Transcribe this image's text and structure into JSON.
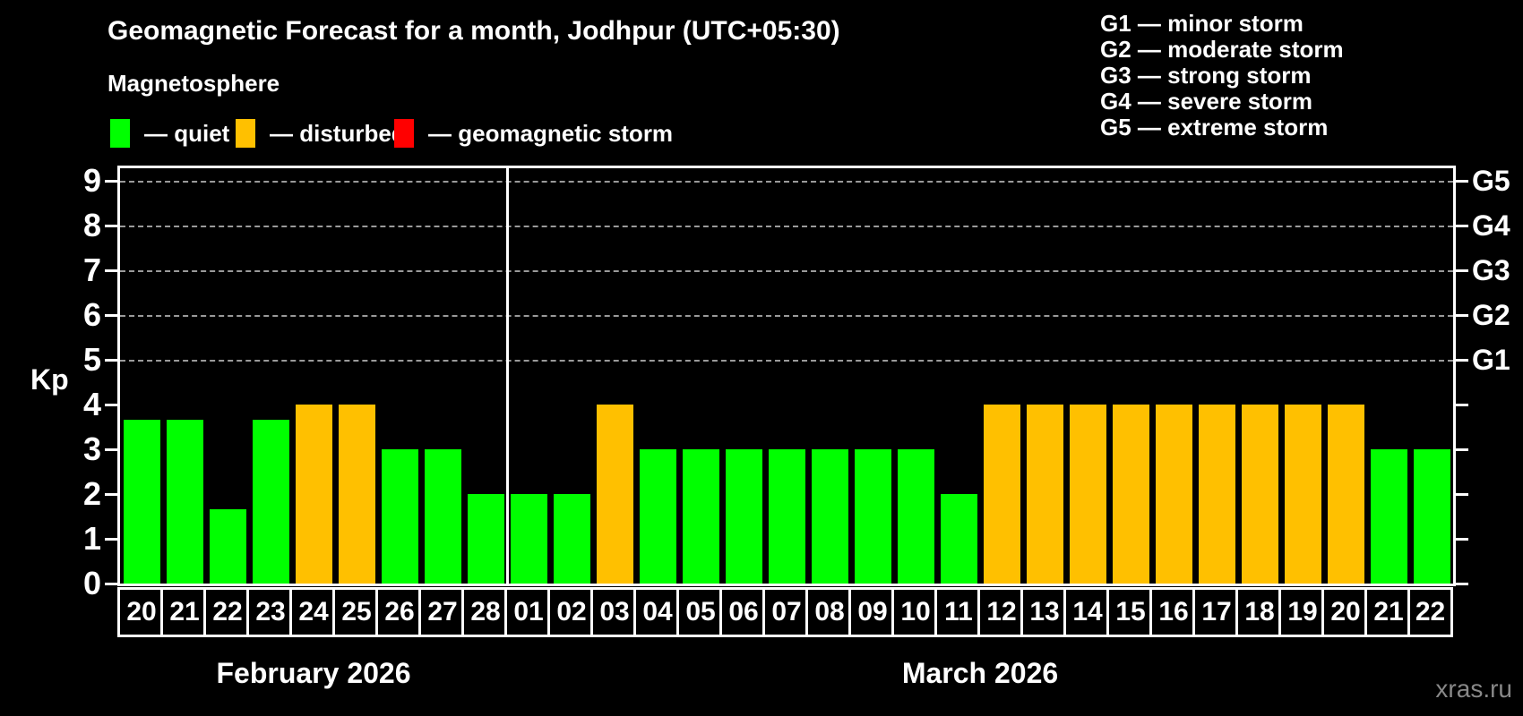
{
  "title": "Geomagnetic Forecast for a month, Jodhpur (UTC+05:30)",
  "subtitle": "Magnetosphere",
  "legend": [
    {
      "key": "quiet",
      "label": "— quiet",
      "color": "#00ff00"
    },
    {
      "key": "disturbed",
      "label": "— disturbed",
      "color": "#ffc000"
    },
    {
      "key": "storm",
      "label": "— geomagnetic storm",
      "color": "#ff0000"
    }
  ],
  "storm_scale_legend": [
    "G1 — minor storm",
    "G2 — moderate storm",
    "G3 — strong storm",
    "G4 — severe storm",
    "G5 — extreme storm"
  ],
  "watermark": "xras.ru",
  "chart_data": {
    "type": "bar",
    "ylabel": "Kp",
    "ylim": [
      0,
      9.4
    ],
    "grid": "dashed horizontal lines at Kp 5-9 only",
    "kp_ticks": [
      0,
      1,
      2,
      3,
      4,
      5,
      6,
      7,
      8,
      9
    ],
    "g_levels": [
      {
        "label": "G1",
        "kp": 5
      },
      {
        "label": "G2",
        "kp": 6
      },
      {
        "label": "G3",
        "kp": 7
      },
      {
        "label": "G4",
        "kp": 8
      },
      {
        "label": "G5",
        "kp": 9
      }
    ],
    "status_colors": {
      "quiet": "#00ff00",
      "disturbed": "#ffc000",
      "storm": "#ff0000"
    },
    "months": [
      {
        "label": "February 2026",
        "days": 9
      },
      {
        "label": "March 2026",
        "days": 22
      }
    ],
    "bars": [
      {
        "day": "20",
        "kp": 3.67,
        "status": "quiet"
      },
      {
        "day": "21",
        "kp": 3.67,
        "status": "quiet"
      },
      {
        "day": "22",
        "kp": 1.67,
        "status": "quiet"
      },
      {
        "day": "23",
        "kp": 3.67,
        "status": "quiet"
      },
      {
        "day": "24",
        "kp": 4,
        "status": "disturbed"
      },
      {
        "day": "25",
        "kp": 4,
        "status": "disturbed"
      },
      {
        "day": "26",
        "kp": 3,
        "status": "quiet"
      },
      {
        "day": "27",
        "kp": 3,
        "status": "quiet"
      },
      {
        "day": "28",
        "kp": 2,
        "status": "quiet"
      },
      {
        "day": "01",
        "kp": 2,
        "status": "quiet"
      },
      {
        "day": "02",
        "kp": 2,
        "status": "quiet"
      },
      {
        "day": "03",
        "kp": 4,
        "status": "disturbed"
      },
      {
        "day": "04",
        "kp": 3,
        "status": "quiet"
      },
      {
        "day": "05",
        "kp": 3,
        "status": "quiet"
      },
      {
        "day": "06",
        "kp": 3,
        "status": "quiet"
      },
      {
        "day": "07",
        "kp": 3,
        "status": "quiet"
      },
      {
        "day": "08",
        "kp": 3,
        "status": "quiet"
      },
      {
        "day": "09",
        "kp": 3,
        "status": "quiet"
      },
      {
        "day": "10",
        "kp": 3,
        "status": "quiet"
      },
      {
        "day": "11",
        "kp": 2,
        "status": "quiet"
      },
      {
        "day": "12",
        "kp": 4,
        "status": "disturbed"
      },
      {
        "day": "13",
        "kp": 4,
        "status": "disturbed"
      },
      {
        "day": "14",
        "kp": 4,
        "status": "disturbed"
      },
      {
        "day": "15",
        "kp": 4,
        "status": "disturbed"
      },
      {
        "day": "16",
        "kp": 4,
        "status": "disturbed"
      },
      {
        "day": "17",
        "kp": 4,
        "status": "disturbed"
      },
      {
        "day": "18",
        "kp": 4,
        "status": "disturbed"
      },
      {
        "day": "19",
        "kp": 4,
        "status": "disturbed"
      },
      {
        "day": "20",
        "kp": 4,
        "status": "disturbed"
      },
      {
        "day": "21",
        "kp": 3,
        "status": "quiet"
      },
      {
        "day": "22",
        "kp": 3,
        "status": "quiet"
      }
    ]
  }
}
